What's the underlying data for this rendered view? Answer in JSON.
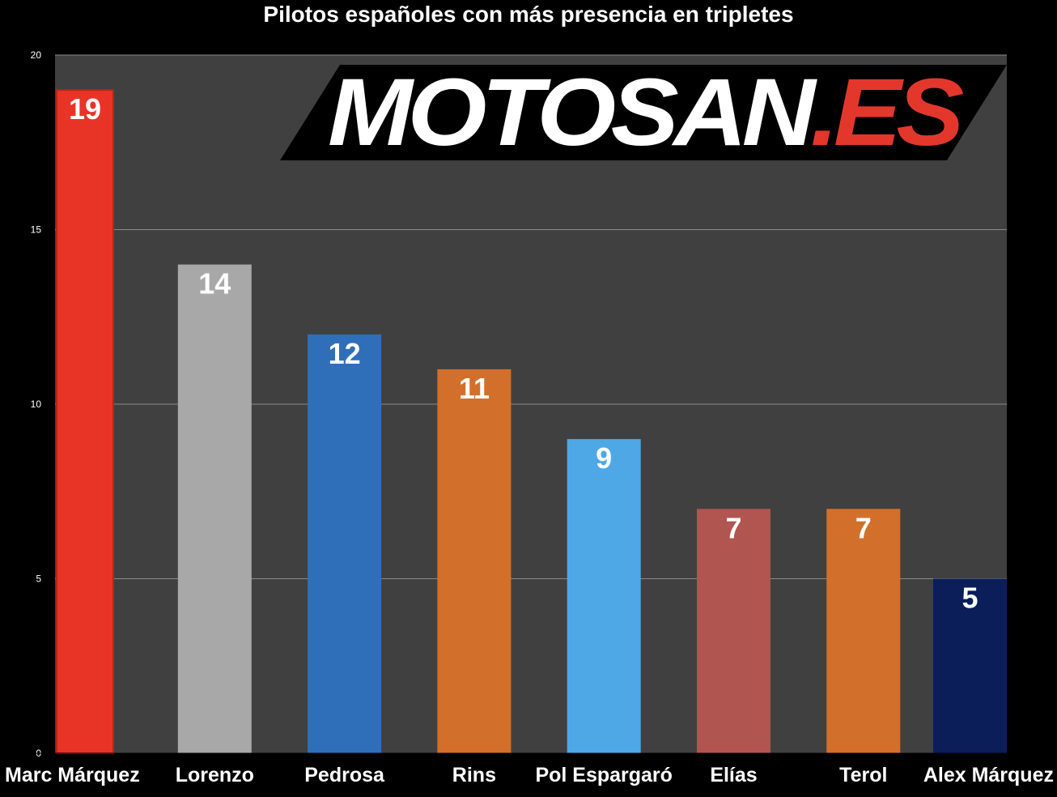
{
  "chart_data": {
    "type": "bar",
    "title": "Pilotos españoles con más presencia en tripletes",
    "categories": [
      "Marc Márquez",
      "Lorenzo",
      "Pedrosa",
      "Rins",
      "Pol Espargaró",
      "Elías",
      "Terol",
      "Alex Márquez"
    ],
    "values": [
      19,
      14,
      12,
      11,
      9,
      7,
      7,
      5
    ],
    "colors": [
      "#e83427",
      "#a8a8a8",
      "#2f6fba",
      "#d2702b",
      "#4fa8e6",
      "#b05550",
      "#d2702b",
      "#0b1e5a"
    ],
    "ylim": [
      0,
      20
    ],
    "yticks": [
      0,
      5,
      10,
      15,
      20
    ],
    "grid": true,
    "xlabel": "",
    "ylabel": ""
  },
  "watermark": {
    "text": "MOTOSAN",
    "accent": ".ES"
  },
  "style": {
    "plot_background": "#404040",
    "page_background": "#000000",
    "grid_color": "#8a8a8a"
  }
}
